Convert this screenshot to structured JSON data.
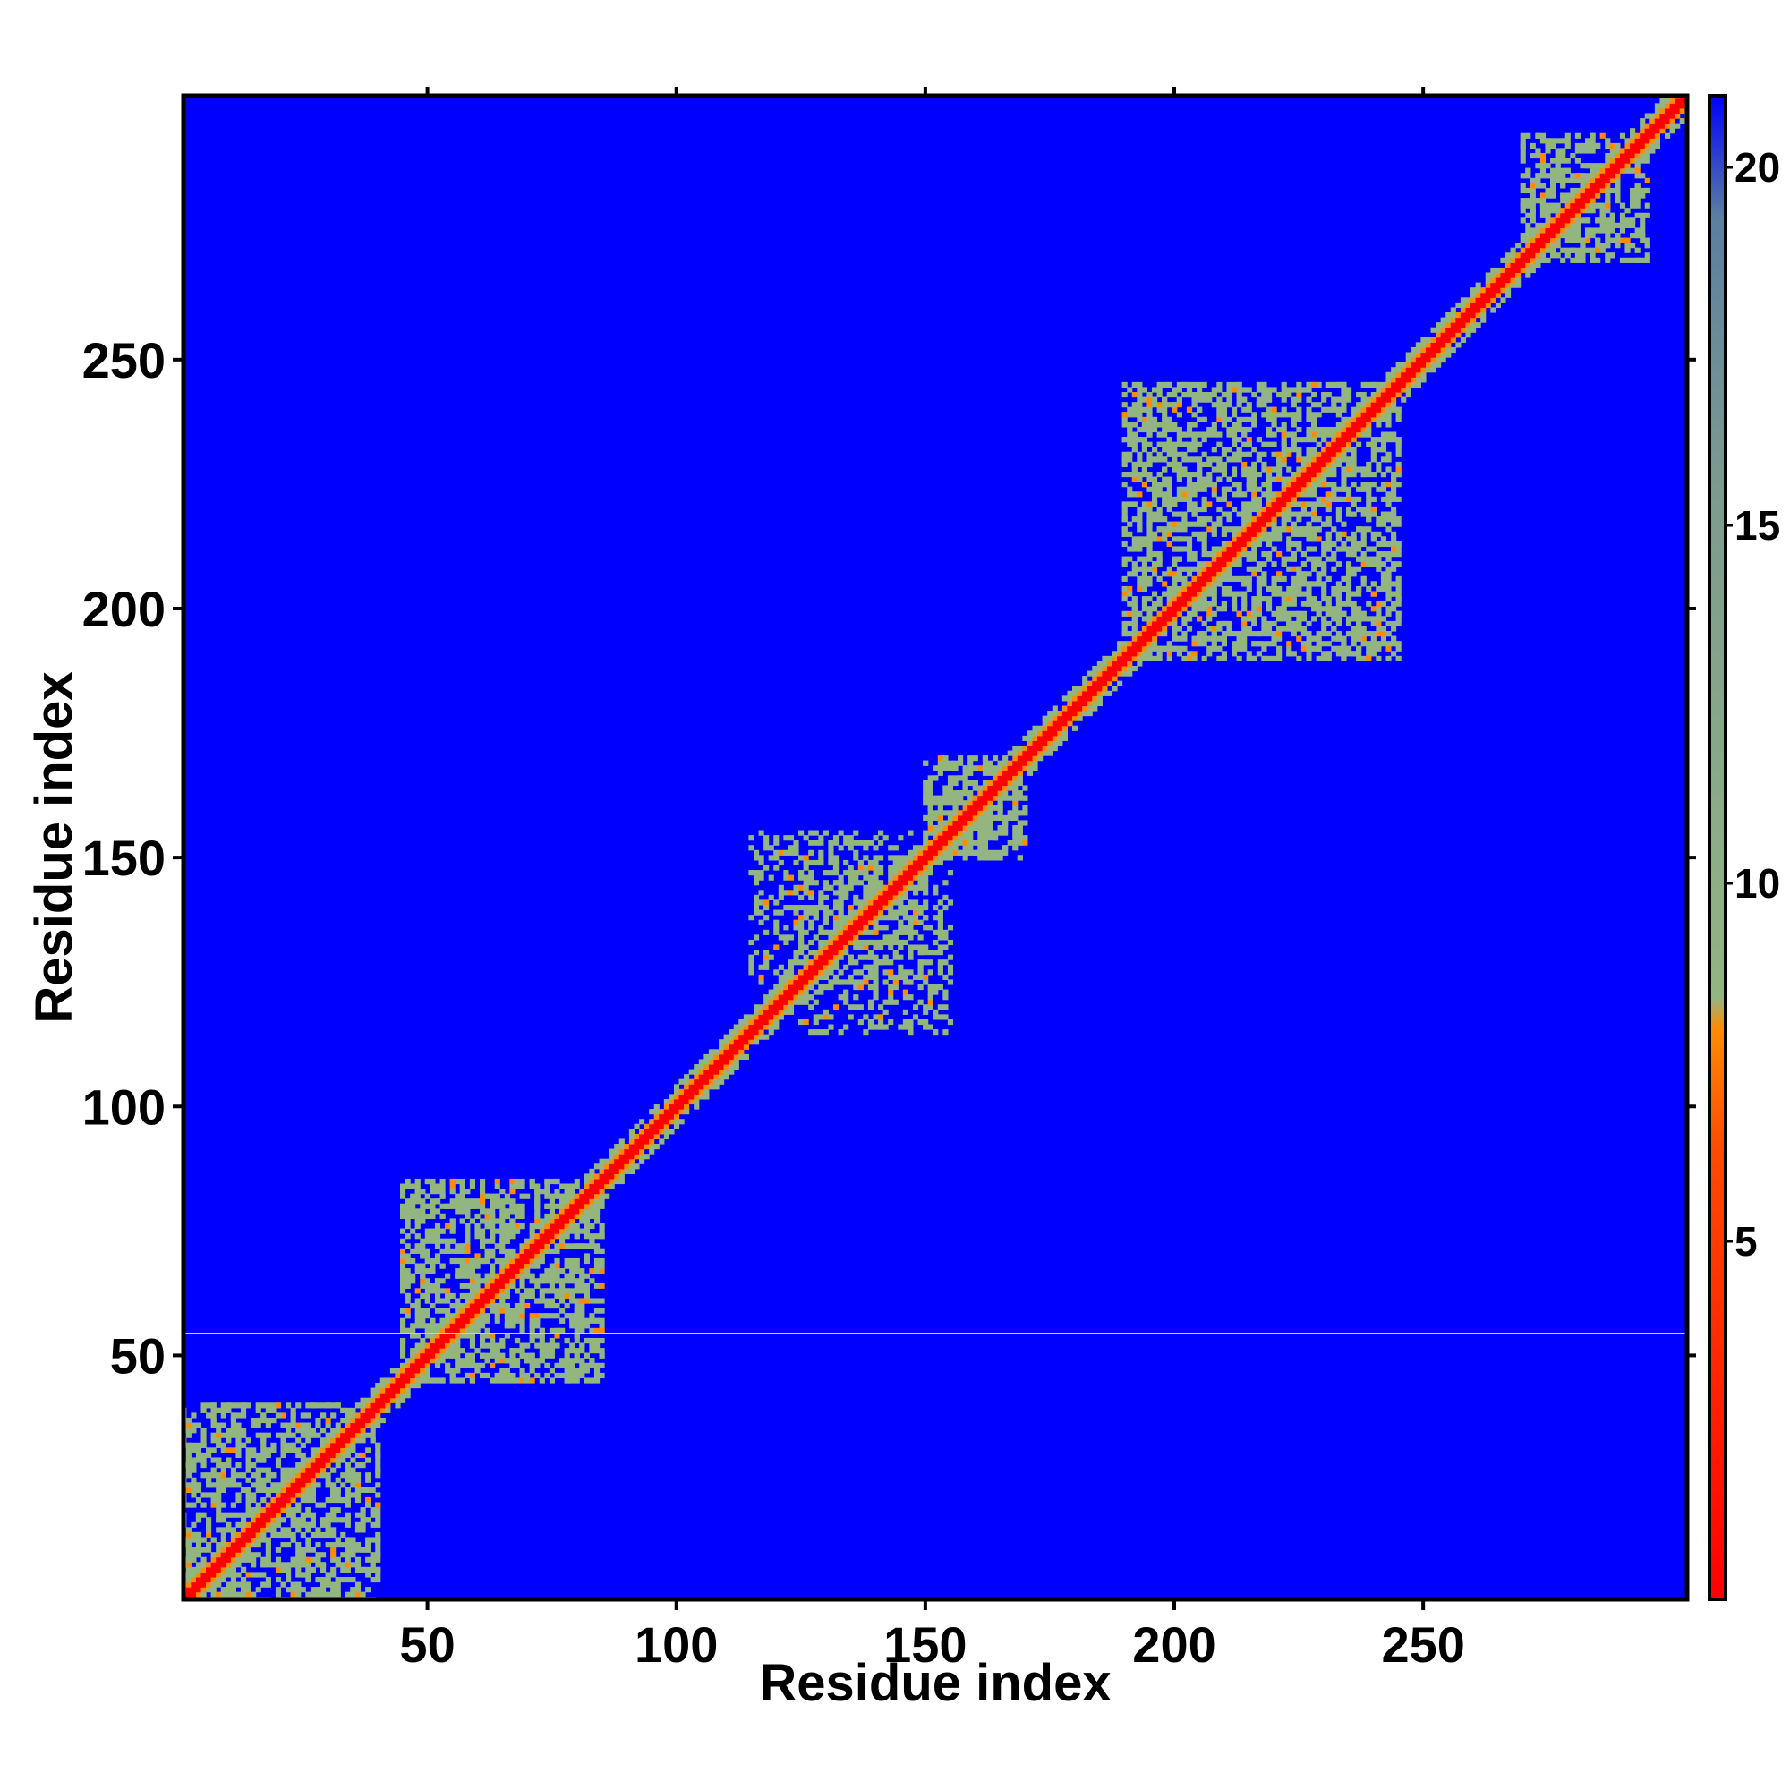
{
  "chart_data": {
    "type": "heatmap",
    "title": "",
    "xlabel": "Residue index",
    "ylabel": "Residue index",
    "xlim": [
      1,
      303
    ],
    "ylim": [
      1,
      303
    ],
    "x_ticks": [
      "50",
      "100",
      "150",
      "200",
      "250"
    ],
    "y_ticks": [
      "50",
      "100",
      "150",
      "200",
      "250"
    ],
    "colorbar": {
      "ticks": [
        "5",
        "10",
        "15",
        "20"
      ],
      "range": [
        0,
        21
      ],
      "colors": [
        "#ff0000",
        "#ff8c00",
        "#93b580",
        "#5a7fa0",
        "#0000ff"
      ]
    },
    "background_color": "#0000ff",
    "diagonal_color": "#ff0000",
    "features": [
      {
        "name": "diagonal",
        "from": 1,
        "to": 303
      },
      {
        "name": "contact-cluster",
        "x": [
          1,
          40
        ],
        "y": [
          1,
          40
        ]
      },
      {
        "name": "contact-cluster",
        "x": [
          45,
          85
        ],
        "y": [
          45,
          85
        ]
      },
      {
        "name": "contact-cluster",
        "x": [
          115,
          150
        ],
        "y": [
          125,
          155
        ]
      },
      {
        "name": "contact-cluster",
        "x": [
          150,
          170
        ],
        "y": [
          150,
          170
        ]
      },
      {
        "name": "contact-cluster",
        "x": [
          190,
          245
        ],
        "y": [
          190,
          245
        ]
      },
      {
        "name": "contact-cluster",
        "x": [
          270,
          295
        ],
        "y": [
          270,
          295
        ]
      }
    ],
    "grid": false,
    "legend": "right"
  }
}
